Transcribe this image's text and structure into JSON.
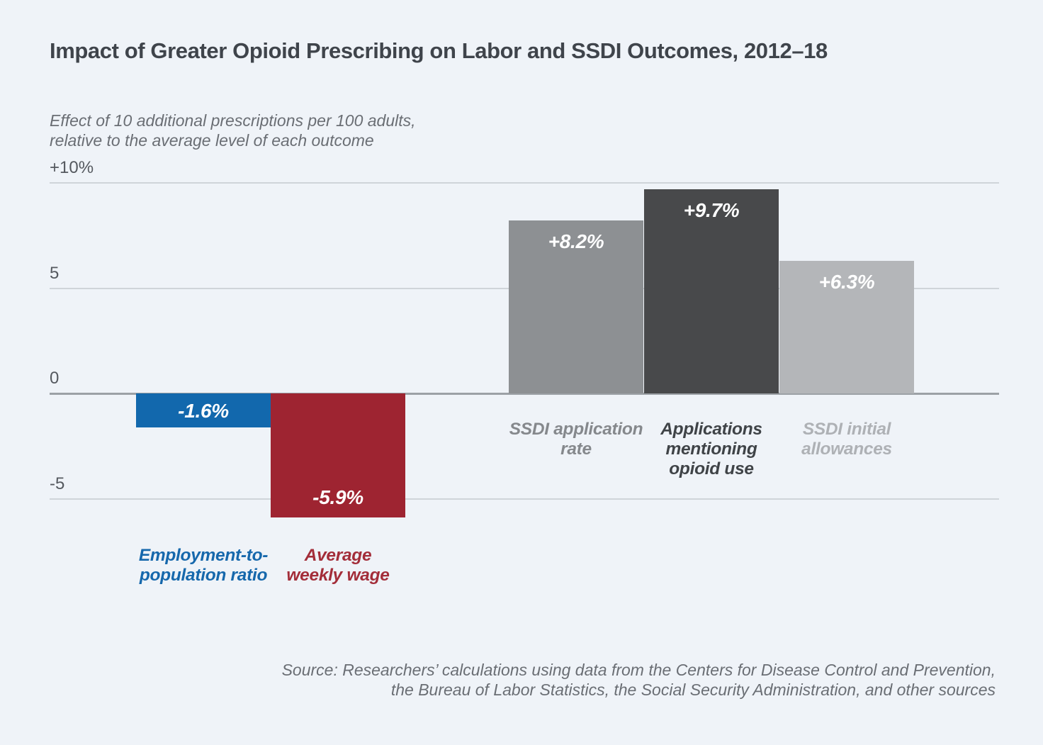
{
  "page": {
    "background_color": "#eff3f8"
  },
  "chart_data": {
    "type": "bar",
    "title": "Impact of Greater Opioid Prescribing on Labor and SSDI Outcomes, 2012–18",
    "subtitle_lines": [
      "Effect of 10 additional prescriptions per 100 adults,",
      "relative to the average level of each outcome"
    ],
    "xlabel": "",
    "ylabel": "",
    "ylim": [
      -6.7,
      10.3
    ],
    "grid": "horizontal",
    "legend": "none",
    "yticks": [
      {
        "label": "+10%",
        "value": 10
      },
      {
        "label": "5",
        "value": 5
      },
      {
        "label": "0",
        "value": 0
      },
      {
        "label": "-5",
        "value": -5
      }
    ],
    "categories": [
      "Employment-to-population ratio",
      "Average weekly wage",
      "SSDI application rate",
      "Applications mentioning opioid use",
      "SSDI initial allowances"
    ],
    "values": [
      -1.6,
      -5.9,
      8.2,
      9.7,
      6.3
    ],
    "series": [
      {
        "name": "Employment-to-population ratio",
        "label_lines": [
          "Employment-to-",
          "population ratio"
        ],
        "value": -1.6,
        "value_label": "-1.6%",
        "bar_color": "#1268ad",
        "label_color": "#1668ac"
      },
      {
        "name": "Average weekly wage",
        "label_lines": [
          "Average",
          "weekly wage"
        ],
        "value": -5.9,
        "value_label": "-5.9%",
        "bar_color": "#9e2431",
        "label_color": "#a32d39"
      },
      {
        "name": "SSDI application rate",
        "label_lines": [
          "SSDI application",
          "rate"
        ],
        "value": 8.2,
        "value_label": "+8.2%",
        "bar_color": "#8d9093",
        "label_color": "#85888c"
      },
      {
        "name": "Applications mentioning opioid use",
        "label_lines": [
          "Applications",
          "mentioning",
          "opioid use"
        ],
        "value": 9.7,
        "value_label": "+9.7%",
        "bar_color": "#48494b",
        "label_color": "#3f4347"
      },
      {
        "name": "SSDI initial allowances",
        "label_lines": [
          "SSDI initial",
          "allowances"
        ],
        "value": 6.3,
        "value_label": "+6.3%",
        "bar_color": "#b4b6b9",
        "label_color": "#aeb1b5"
      }
    ],
    "source_lines": [
      "Source: Researchers’ calculations using data from the Centers for Disease Control and Prevention,",
      "the Bureau of Labor Statistics, the Social Security Administration, and other sources"
    ]
  }
}
